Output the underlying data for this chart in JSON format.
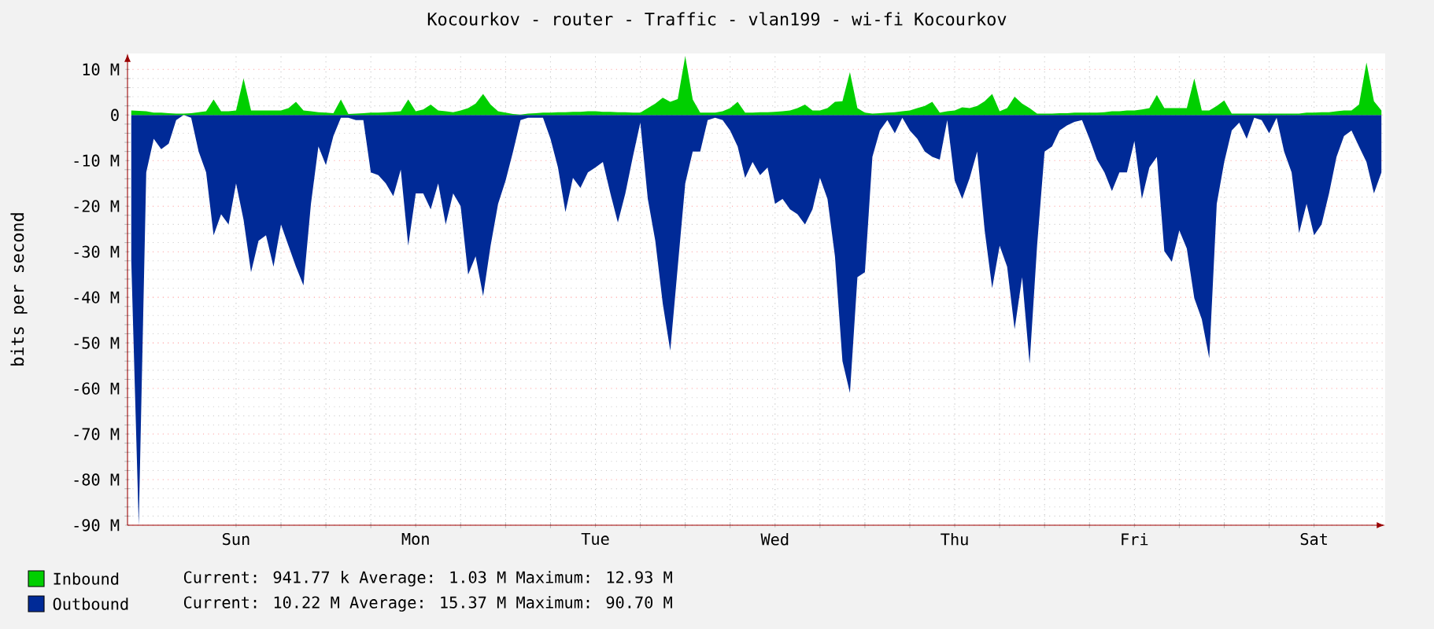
{
  "chart_data": {
    "type": "area",
    "title": "Kocourkov - router - Traffic - vlan199 - wi-fi Kocourkov",
    "ylabel": "bits per second",
    "categories": [
      null,
      null,
      null,
      null,
      null,
      null,
      null,
      null,
      null,
      null,
      null,
      null,
      null,
      null,
      "Sun",
      null,
      null,
      null,
      null,
      null,
      null,
      null,
      null,
      null,
      null,
      null,
      null,
      null,
      null,
      null,
      null,
      null,
      null,
      null,
      null,
      null,
      null,
      null,
      "Mon",
      null,
      null,
      null,
      null,
      null,
      null,
      null,
      null,
      null,
      null,
      null,
      null,
      null,
      null,
      null,
      null,
      null,
      null,
      null,
      null,
      null,
      null,
      null,
      "Tue",
      null,
      null,
      null,
      null,
      null,
      null,
      null,
      null,
      null,
      null,
      null,
      null,
      null,
      null,
      null,
      null,
      null,
      null,
      null,
      null,
      null,
      null,
      null,
      "Wed",
      null,
      null,
      null,
      null,
      null,
      null,
      null,
      null,
      null,
      null,
      null,
      null,
      null,
      null,
      null,
      null,
      null,
      null,
      null,
      null,
      null,
      null,
      null,
      "Thu",
      null,
      null,
      null,
      null,
      null,
      null,
      null,
      null,
      null,
      null,
      null,
      null,
      null,
      null,
      null,
      null,
      null,
      null,
      null,
      null,
      null,
      null,
      null,
      "Fri",
      null,
      null,
      null,
      null,
      null,
      null,
      null,
      null,
      null,
      null,
      null,
      null,
      null,
      null,
      null,
      null,
      null,
      null,
      null,
      null,
      null,
      null,
      null,
      "Sat",
      null,
      null,
      null,
      null,
      null,
      null,
      null,
      null,
      null
    ],
    "ylim": [
      -90,
      13.5
    ],
    "yticks": [
      {
        "value": 10,
        "label": "10 M"
      },
      0,
      {
        "value": -10,
        "label": "-10 M"
      },
      {
        "value": -20,
        "label": "-20 M"
      },
      {
        "value": -30,
        "label": "-30 M"
      },
      {
        "value": -40,
        "label": "-40 M"
      },
      {
        "value": -50,
        "label": "-50 M"
      },
      {
        "value": -60,
        "label": "-60 M"
      },
      {
        "value": -70,
        "label": "-70 M"
      },
      {
        "value": -80,
        "label": "-80 M"
      },
      {
        "value": -90,
        "label": "-90 M"
      }
    ],
    "grid": true,
    "legend": "bottom",
    "series": [
      {
        "name": "Outbound",
        "color": "#002a97",
        "values": [
          -32,
          -90,
          -12.6,
          -5.2,
          -7.5,
          -6.3,
          -1.1,
          0,
          -0.6,
          -8,
          -12.6,
          -26.4,
          -21.8,
          -24,
          -15,
          -23,
          -34.5,
          -27.6,
          -26.4,
          -33.3,
          -24,
          -28.7,
          -33.3,
          -37.4,
          -19.5,
          -6.9,
          -11,
          -4.6,
          -0.6,
          -0.6,
          -1.1,
          -1.1,
          -12.6,
          -13.2,
          -15,
          -17.8,
          -12,
          -28.7,
          -17.2,
          -17.2,
          -20.7,
          -15,
          -24,
          -17.2,
          -20,
          -35,
          -31,
          -39.7,
          -28.7,
          -19.5,
          -14.4,
          -8,
          -1.1,
          -0.6,
          -0.6,
          -0.6,
          -5.2,
          -11.5,
          -21.3,
          -13.8,
          -16,
          -12.6,
          -11.5,
          -10.3,
          -17.2,
          -23.6,
          -17.2,
          -9.2,
          -1.7,
          -18.4,
          -27.6,
          -41.4,
          -51.7,
          -33.3,
          -15,
          -8,
          -8,
          -1.1,
          -0.6,
          -1.1,
          -3.4,
          -6.9,
          -13.8,
          -10.3,
          -13.2,
          -11.5,
          -19.5,
          -18.4,
          -20.7,
          -21.8,
          -24,
          -20.7,
          -13.8,
          -18.4,
          -31,
          -54,
          -61,
          -35.6,
          -34.5,
          -9.2,
          -3.4,
          -1.1,
          -4,
          -0.6,
          -3.4,
          -5.2,
          -8,
          -9.2,
          -9.8,
          -1.1,
          -14.4,
          -18.4,
          -13.8,
          -8,
          -25.3,
          -38,
          -28.7,
          -33.3,
          -47,
          -35.6,
          -54.6,
          -28.7,
          -8,
          -6.9,
          -3.4,
          -2.3,
          -1.5,
          -1.1,
          -5.2,
          -9.8,
          -12.6,
          -16.7,
          -12.6,
          -12.6,
          -5.7,
          -18.4,
          -11.5,
          -9.2,
          -29.9,
          -32.2,
          -25.3,
          -29.3,
          -40.2,
          -44.8,
          -53.4,
          -19.5,
          -10.3,
          -3.4,
          -1.7,
          -5.2,
          -0.6,
          -1.1,
          -4,
          -0.6,
          -8,
          -12.6,
          -25.9,
          -19.5,
          -26.4,
          -24,
          -17.2,
          -9.2,
          -4.6,
          -3.4,
          -6.9,
          -10.3,
          -17.2,
          -12.6
        ]
      },
      {
        "name": "Inbound",
        "color": "#00cf00",
        "values": [
          1,
          0.9,
          0.8,
          0.5,
          0.5,
          0.4,
          0.3,
          0.3,
          0.4,
          0.6,
          0.8,
          3.4,
          0.8,
          0.8,
          1,
          8,
          1,
          1,
          1,
          1,
          1,
          1.5,
          2.9,
          1,
          0.8,
          0.6,
          0.5,
          0.4,
          3.4,
          0.2,
          0.3,
          0.4,
          0.5,
          0.5,
          0.6,
          0.7,
          0.8,
          3.4,
          0.8,
          1.2,
          2.3,
          1,
          0.8,
          0.6,
          1,
          1.5,
          2.5,
          4.6,
          2.3,
          0.8,
          0.5,
          0.2,
          0.1,
          0.3,
          0.4,
          0.5,
          0.5,
          0.6,
          0.6,
          0.7,
          0.7,
          0.8,
          0.8,
          0.7,
          0.7,
          0.6,
          0.6,
          0.5,
          0.5,
          1.5,
          2.5,
          3.8,
          2.9,
          3.5,
          12.9,
          3.4,
          0.5,
          0.5,
          0.5,
          0.8,
          1.5,
          2.9,
          0.5,
          0.5,
          0.6,
          0.6,
          0.7,
          0.8,
          1,
          1.5,
          2.3,
          1,
          1,
          1.5,
          2.9,
          3,
          9.4,
          1.5,
          0.5,
          0.3,
          0.4,
          0.5,
          0.6,
          0.8,
          1,
          1.5,
          2,
          2.9,
          0.5,
          0.8,
          1,
          1.7,
          1.5,
          2,
          3,
          4.6,
          0.8,
          1.5,
          4,
          2.5,
          1.5,
          0.3,
          0.3,
          0.3,
          0.4,
          0.4,
          0.5,
          0.5,
          0.5,
          0.5,
          0.6,
          0.8,
          0.8,
          1,
          1,
          1.2,
          1.5,
          4.4,
          1.5,
          1.5,
          1.5,
          1.5,
          8,
          1,
          1,
          2,
          3.2,
          0.3,
          0.3,
          0.3,
          0.3,
          0.3,
          0.3,
          0.3,
          0.3,
          0.3,
          0.3,
          0.5,
          0.5,
          0.6,
          0.6,
          0.8,
          1,
          1,
          2.3,
          11.5,
          3,
          1
        ]
      }
    ],
    "annotations": [
      "Current: 10.22 M Average: 15.37 M Maximum: 90.70 M",
      "Current: 941.77 k Average: 1.03 M Maximum: 12.93 M"
    ]
  }
}
